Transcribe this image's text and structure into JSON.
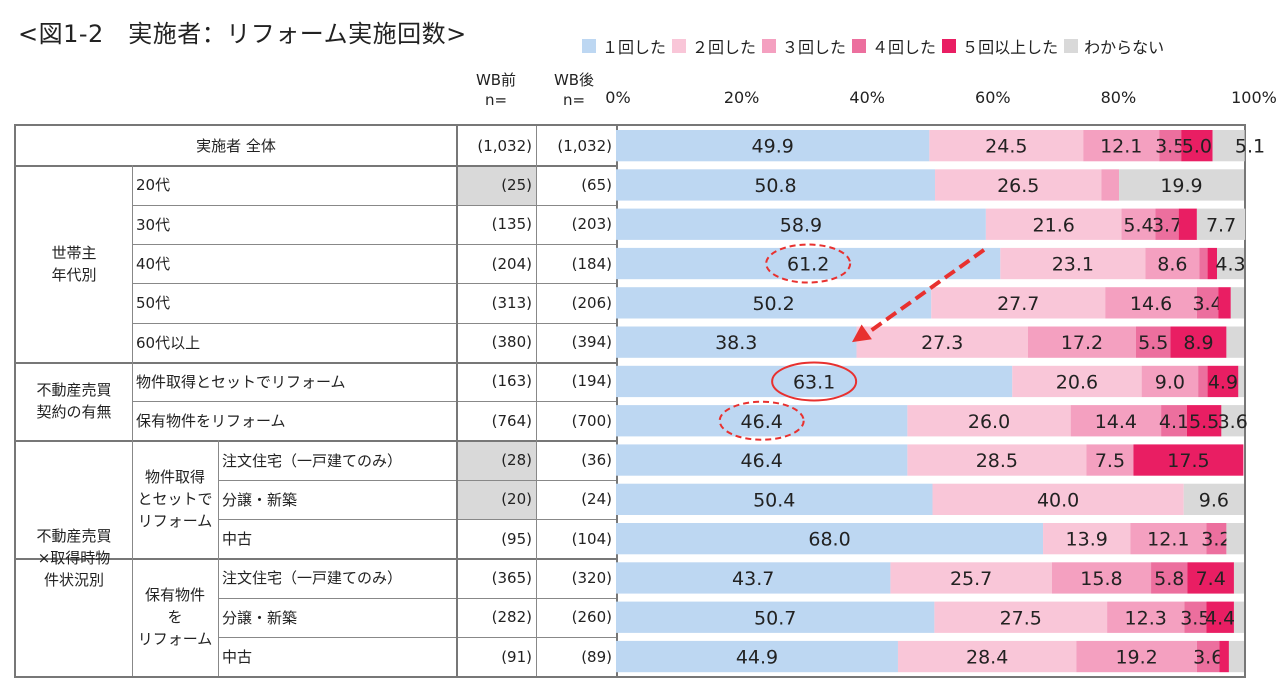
{
  "title": "<図1-2　実施者：リフォーム実施回数>",
  "headers": {
    "wb_before": "WB前",
    "wb_after": "WB後",
    "n": "n="
  },
  "group_labels": {
    "age": [
      "世帯主",
      "年代別"
    ],
    "contract": [
      "不動産売買",
      "契約の有無"
    ],
    "status": [
      "不動産売買",
      "×取得時物",
      "件状況別"
    ],
    "sub1": [
      "物件取得",
      "とセットで",
      "リフォーム"
    ],
    "sub2": [
      "保有物件",
      "を",
      "リフォーム"
    ]
  },
  "rows": [
    {
      "label": "実施者 全体",
      "before": "(1,032)",
      "after": "(1,032)"
    },
    {
      "label": "20代",
      "before": "(25)",
      "after": "(65)"
    },
    {
      "label": "30代",
      "before": "(135)",
      "after": "(203)"
    },
    {
      "label": "40代",
      "before": "(204)",
      "after": "(184)"
    },
    {
      "label": "50代",
      "before": "(313)",
      "after": "(206)"
    },
    {
      "label": "60代以上",
      "before": "(380)",
      "after": "(394)"
    },
    {
      "label": "物件取得とセットでリフォーム",
      "before": "(163)",
      "after": "(194)"
    },
    {
      "label": "保有物件をリフォーム",
      "before": "(764)",
      "after": "(700)"
    },
    {
      "label": "注文住宅（一戸建てのみ）",
      "before": "(28)",
      "after": "(36)"
    },
    {
      "label": "分譲・新築",
      "before": "(20)",
      "after": "(24)"
    },
    {
      "label": "中古",
      "before": "(95)",
      "after": "(104)"
    },
    {
      "label": "注文住宅（一戸建てのみ）",
      "before": "(365)",
      "after": "(320)"
    },
    {
      "label": "分譲・新築",
      "before": "(282)",
      "after": "(260)"
    },
    {
      "label": "中古",
      "before": "(91)",
      "after": "(89)"
    }
  ],
  "chart_data": {
    "type": "bar",
    "orientation": "horizontal-stacked-100",
    "categories": [
      "実施者 全体",
      "20代",
      "30代",
      "40代",
      "50代",
      "60代以上",
      "物件取得とセットでリフォーム",
      "保有物件をリフォーム",
      "注文住宅（一戸建てのみ）",
      "分譲・新築",
      "中古",
      "注文住宅（一戸建てのみ）",
      "分譲・新築",
      "中古"
    ],
    "series": [
      {
        "name": "１回した",
        "color": "#bdd7f2",
        "values": [
          49.9,
          50.8,
          58.9,
          61.2,
          50.2,
          38.3,
          63.1,
          46.4,
          46.4,
          50.4,
          68.0,
          43.7,
          50.7,
          44.9
        ]
      },
      {
        "name": "２回した",
        "color": "#f9c6d8",
        "values": [
          24.5,
          26.5,
          21.6,
          23.1,
          27.7,
          27.3,
          20.6,
          26.0,
          28.5,
          40.0,
          13.9,
          25.7,
          27.5,
          28.4
        ]
      },
      {
        "name": "３回した",
        "color": "#f4a0c0",
        "values": [
          12.1,
          2.8,
          5.4,
          8.6,
          14.6,
          17.2,
          9.0,
          14.4,
          7.5,
          0,
          12.1,
          15.8,
          12.3,
          19.2
        ]
      },
      {
        "name": "４回した",
        "color": "#ec6f9e",
        "values": [
          3.5,
          0,
          3.7,
          1.3,
          3.4,
          5.5,
          1.5,
          4.1,
          0,
          0,
          3.2,
          5.8,
          3.5,
          3.6
        ]
      },
      {
        "name": "５回以上した",
        "color": "#e91e63",
        "values": [
          5.0,
          0,
          2.9,
          1.5,
          2.0,
          8.9,
          4.9,
          5.5,
          17.5,
          0,
          0,
          7.4,
          4.4,
          1.5
        ]
      },
      {
        "name": "わからない",
        "color": "#d9d9d9",
        "values": [
          5.1,
          19.9,
          7.7,
          4.3,
          2.1,
          2.8,
          0.9,
          3.6,
          0,
          9.6,
          2.8,
          1.6,
          1.6,
          2.4
        ]
      }
    ],
    "labels": [
      [
        "49.9",
        "24.5",
        "12.1",
        "3.5",
        "5.0",
        "5.1"
      ],
      [
        "50.8",
        "26.5",
        "",
        "",
        "",
        "19.9"
      ],
      [
        "58.9",
        "21.6",
        "5.4",
        "3.7",
        "",
        "7.7"
      ],
      [
        "61.2",
        "23.1",
        "8.6",
        "",
        "",
        "4.3"
      ],
      [
        "50.2",
        "27.7",
        "14.6",
        "3.4",
        "",
        ""
      ],
      [
        "38.3",
        "27.3",
        "17.2",
        "5.5",
        "8.9",
        ""
      ],
      [
        "63.1",
        "20.6",
        "9.0",
        "",
        "4.9",
        ""
      ],
      [
        "46.4",
        "26.0",
        "14.4",
        "4.1",
        "5.5",
        "3.6"
      ],
      [
        "46.4",
        "28.5",
        "7.5",
        "",
        "17.5",
        ""
      ],
      [
        "50.4",
        "40.0",
        "",
        "",
        "",
        "9.6"
      ],
      [
        "68.0",
        "13.9",
        "12.1",
        "3.2",
        "",
        ""
      ],
      [
        "43.7",
        "25.7",
        "15.8",
        "5.8",
        "7.4",
        ""
      ],
      [
        "50.7",
        "27.5",
        "12.3",
        "3.5",
        "4.4",
        ""
      ],
      [
        "44.9",
        "28.4",
        "19.2",
        "3.6",
        "",
        ""
      ]
    ],
    "x_ticks": [
      "0%",
      "20%",
      "40%",
      "60%",
      "80%",
      "100%"
    ],
    "xlim": [
      0,
      100
    ],
    "highlight_circles": {
      "solid": [
        6
      ],
      "dashed": [
        3,
        7
      ]
    },
    "arrow": {
      "from_row": 3,
      "to_row": 5,
      "style": "dashed",
      "color": "#e8312f"
    }
  }
}
